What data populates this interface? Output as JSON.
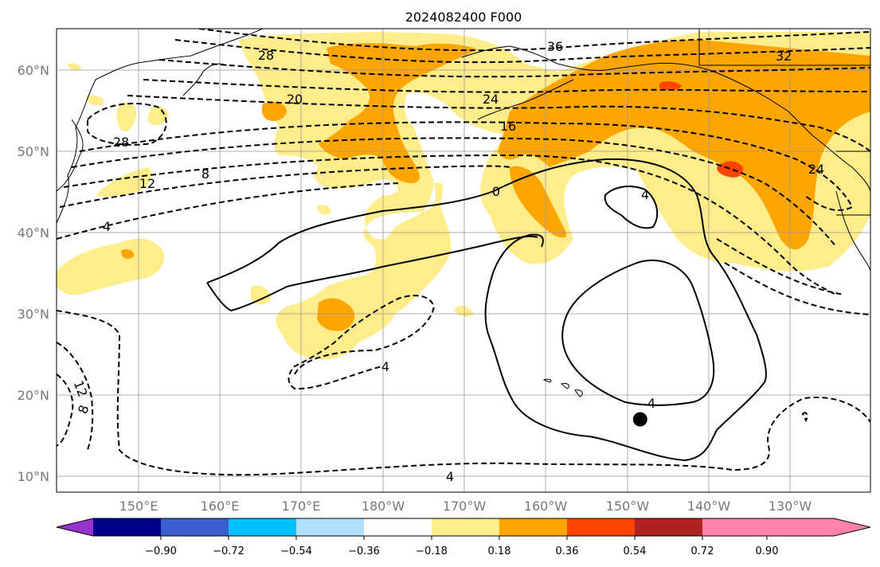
{
  "title": "2024082400 F000",
  "lat_labels": [
    "60°N",
    "50°N",
    "40°N",
    "30°N",
    "20°N",
    "10°N"
  ],
  "lon_labels": [
    "150°E",
    "160°E",
    "170°E",
    "180°W",
    "170°W",
    "160°W",
    "150°W",
    "140°W",
    "130°W"
  ],
  "contour_labels": [
    "36",
    "32",
    "28",
    "28",
    "24",
    "24",
    "20",
    "16",
    "12",
    "8",
    "4",
    "0",
    "4",
    "4",
    "4",
    "4",
    "12",
    "8"
  ],
  "colorbar": {
    "ticks": [
      "−0.90",
      "−0.72",
      "−0.54",
      "−0.36",
      "−0.18",
      "0.18",
      "0.36",
      "0.54",
      "0.72",
      "0.90"
    ],
    "colors": [
      "#9932cc",
      "#00008b",
      "#3a5fcd",
      "#00bfff",
      "#b0e2ff",
      "#ffffff",
      "#ffec8b",
      "#ffa500",
      "#ff4500",
      "#b22222",
      "#ff82ab"
    ]
  },
  "storm_marker": {
    "lon": -148.5,
    "lat": 17,
    "color": "#000000"
  }
}
